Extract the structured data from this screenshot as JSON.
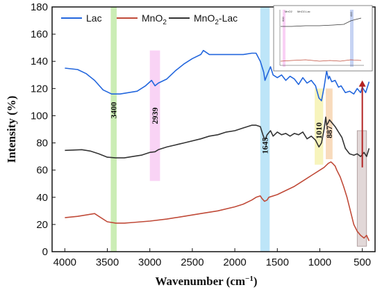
{
  "chart_data": {
    "type": "line",
    "xlabel": "Wavenumber (cm",
    "xlabel_sup": "−1",
    "xlabel_end": ")",
    "ylabel": "Intensity (%)",
    "xlim": [
      4150,
      350
    ],
    "ylim": [
      0,
      180
    ],
    "x_ticks": [
      4000,
      3500,
      3000,
      2500,
      2000,
      1500,
      1000,
      500
    ],
    "y_ticks": [
      0,
      20,
      40,
      60,
      80,
      100,
      120,
      140,
      160,
      180
    ],
    "legend_position": "top-left",
    "series": [
      {
        "name": "Lac",
        "color": "#2266dd",
        "points": [
          [
            4000,
            135
          ],
          [
            3850,
            134
          ],
          [
            3750,
            131
          ],
          [
            3650,
            126
          ],
          [
            3550,
            119
          ],
          [
            3450,
            116
          ],
          [
            3350,
            116
          ],
          [
            3250,
            117
          ],
          [
            3150,
            118
          ],
          [
            3050,
            122
          ],
          [
            2980,
            126
          ],
          [
            2939,
            122
          ],
          [
            2900,
            124
          ],
          [
            2800,
            127
          ],
          [
            2700,
            133
          ],
          [
            2600,
            138
          ],
          [
            2500,
            142
          ],
          [
            2400,
            145
          ],
          [
            2370,
            148
          ],
          [
            2300,
            145
          ],
          [
            2200,
            145
          ],
          [
            2100,
            145
          ],
          [
            2000,
            145
          ],
          [
            1900,
            145
          ],
          [
            1800,
            146
          ],
          [
            1750,
            146
          ],
          [
            1700,
            140
          ],
          [
            1660,
            132
          ],
          [
            1645,
            126
          ],
          [
            1620,
            130
          ],
          [
            1580,
            136
          ],
          [
            1550,
            130
          ],
          [
            1500,
            128
          ],
          [
            1450,
            130
          ],
          [
            1400,
            126
          ],
          [
            1350,
            129
          ],
          [
            1300,
            127
          ],
          [
            1250,
            123
          ],
          [
            1200,
            128
          ],
          [
            1150,
            124
          ],
          [
            1100,
            126
          ],
          [
            1050,
            122
          ],
          [
            1010,
            113
          ],
          [
            980,
            111
          ],
          [
            950,
            121
          ],
          [
            920,
            133
          ],
          [
            900,
            127
          ],
          [
            887,
            129
          ],
          [
            860,
            125
          ],
          [
            820,
            126
          ],
          [
            780,
            121
          ],
          [
            750,
            122
          ],
          [
            700,
            117
          ],
          [
            650,
            118
          ],
          [
            600,
            116
          ],
          [
            560,
            120
          ],
          [
            520,
            117
          ],
          [
            500,
            121
          ],
          [
            460,
            117
          ],
          [
            420,
            125
          ]
        ]
      },
      {
        "name": "MnO",
        "name_sub": "2",
        "color": "#c04a38",
        "points": [
          [
            4000,
            25
          ],
          [
            3850,
            26
          ],
          [
            3700,
            27.5
          ],
          [
            3650,
            28
          ],
          [
            3600,
            26
          ],
          [
            3500,
            22
          ],
          [
            3400,
            21
          ],
          [
            3300,
            21
          ],
          [
            3200,
            21.5
          ],
          [
            3000,
            22.5
          ],
          [
            2800,
            24
          ],
          [
            2600,
            26
          ],
          [
            2400,
            28
          ],
          [
            2200,
            30
          ],
          [
            2000,
            33
          ],
          [
            1900,
            35
          ],
          [
            1800,
            38
          ],
          [
            1750,
            40
          ],
          [
            1700,
            41
          ],
          [
            1680,
            39
          ],
          [
            1650,
            37
          ],
          [
            1620,
            38
          ],
          [
            1600,
            40
          ],
          [
            1500,
            42
          ],
          [
            1400,
            45
          ],
          [
            1300,
            48
          ],
          [
            1200,
            52
          ],
          [
            1100,
            56
          ],
          [
            1000,
            60
          ],
          [
            950,
            62
          ],
          [
            900,
            65
          ],
          [
            870,
            66
          ],
          [
            850,
            65
          ],
          [
            820,
            63
          ],
          [
            800,
            60
          ],
          [
            760,
            55
          ],
          [
            720,
            48
          ],
          [
            680,
            40
          ],
          [
            640,
            30
          ],
          [
            600,
            20
          ],
          [
            560,
            15
          ],
          [
            520,
            12
          ],
          [
            480,
            10
          ],
          [
            450,
            12
          ],
          [
            420,
            8
          ]
        ]
      },
      {
        "name": "MnO",
        "name_sub": "2",
        "name_end": "-Lac",
        "color": "#333333",
        "points": [
          [
            4000,
            74.5
          ],
          [
            3800,
            75
          ],
          [
            3700,
            74
          ],
          [
            3600,
            72
          ],
          [
            3500,
            69.5
          ],
          [
            3400,
            69
          ],
          [
            3300,
            69
          ],
          [
            3200,
            70
          ],
          [
            3100,
            71
          ],
          [
            3000,
            73
          ],
          [
            2939,
            73.5
          ],
          [
            2900,
            75
          ],
          [
            2800,
            77
          ],
          [
            2600,
            80
          ],
          [
            2400,
            83
          ],
          [
            2300,
            85
          ],
          [
            2200,
            86
          ],
          [
            2100,
            88
          ],
          [
            2000,
            89
          ],
          [
            1900,
            91
          ],
          [
            1800,
            93
          ],
          [
            1750,
            93
          ],
          [
            1700,
            92
          ],
          [
            1670,
            86
          ],
          [
            1645,
            82
          ],
          [
            1620,
            86
          ],
          [
            1580,
            89
          ],
          [
            1550,
            85
          ],
          [
            1500,
            88
          ],
          [
            1450,
            86
          ],
          [
            1400,
            87
          ],
          [
            1350,
            85
          ],
          [
            1300,
            87
          ],
          [
            1250,
            86
          ],
          [
            1200,
            88
          ],
          [
            1150,
            83
          ],
          [
            1100,
            85
          ],
          [
            1050,
            82
          ],
          [
            1010,
            77
          ],
          [
            980,
            80
          ],
          [
            950,
            90
          ],
          [
            930,
            99
          ],
          [
            920,
            93
          ],
          [
            900,
            95
          ],
          [
            887,
            97
          ],
          [
            860,
            95
          ],
          [
            820,
            92
          ],
          [
            780,
            88
          ],
          [
            740,
            84
          ],
          [
            700,
            76
          ],
          [
            650,
            72
          ],
          [
            600,
            71
          ],
          [
            560,
            72
          ],
          [
            520,
            70
          ],
          [
            480,
            73
          ],
          [
            450,
            70
          ],
          [
            420,
            76
          ]
        ]
      }
    ],
    "bands": [
      {
        "label": "3400",
        "x_from": 3460,
        "x_to": 3390,
        "y_from": 0,
        "y_to": 180,
        "color": "#b9e79c"
      },
      {
        "label": "2939",
        "x_from": 3000,
        "x_to": 2880,
        "y_from": 52,
        "y_to": 148,
        "color": "#f7c4f2"
      },
      {
        "label": "1645",
        "x_from": 1700,
        "x_to": 1590,
        "y_from": 0,
        "y_to": 180,
        "color": "#a7dcf6"
      },
      {
        "label": "1010",
        "x_from": 1060,
        "x_to": 960,
        "y_from": 64,
        "y_to": 120,
        "color": "#f4f0a6"
      },
      {
        "label": "887",
        "x_from": 930,
        "x_to": 850,
        "y_from": 68,
        "y_to": 120,
        "color": "#f6cfa6"
      },
      {
        "label": "",
        "x_from": 560,
        "x_to": 450,
        "y_from": 4,
        "y_to": 89,
        "color": "#d9cccc"
      }
    ],
    "arrow": {
      "x": 500,
      "y_from": 62,
      "y_to": 126,
      "color": "#b22222"
    },
    "inset": {
      "legend": [
        "MnO2",
        "MnO2-Lac"
      ],
      "labels": [
        "600",
        "410"
      ]
    }
  }
}
